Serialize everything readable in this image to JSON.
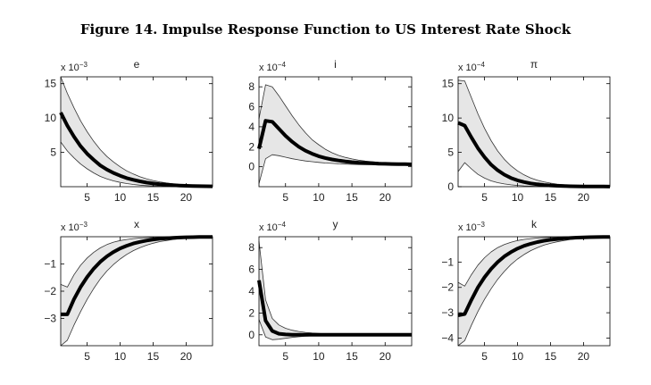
{
  "title": "Figure 14. Impulse Response Function to US Interest Rate Shock",
  "chart_data": [
    {
      "type": "area",
      "title": "e",
      "exponent": "-3",
      "xlim": [
        1,
        24
      ],
      "ylim": [
        0,
        16
      ],
      "xticks": [
        "5",
        "10",
        "15",
        "20"
      ],
      "yticks": [
        "5",
        "10",
        "15"
      ],
      "x": [
        1,
        2,
        3,
        4,
        5,
        6,
        7,
        8,
        9,
        10,
        11,
        12,
        13,
        14,
        15,
        16,
        17,
        18,
        19,
        20,
        21,
        22,
        23,
        24
      ],
      "series": [
        {
          "role": "response",
          "values": [
            10.8,
            8.9,
            7.3,
            5.9,
            4.8,
            3.9,
            3.1,
            2.5,
            2.0,
            1.6,
            1.25,
            1.0,
            0.78,
            0.6,
            0.47,
            0.37,
            0.29,
            0.22,
            0.17,
            0.13,
            0.1,
            0.08,
            0.06,
            0.05
          ]
        },
        {
          "role": "upper",
          "values": [
            16.0,
            13.6,
            11.5,
            9.6,
            8.0,
            6.6,
            5.4,
            4.4,
            3.6,
            2.9,
            2.3,
            1.85,
            1.45,
            1.15,
            0.9,
            0.7,
            0.55,
            0.42,
            0.33,
            0.25,
            0.2,
            0.15,
            0.12,
            0.09
          ]
        },
        {
          "role": "lower",
          "values": [
            6.5,
            5.2,
            4.2,
            3.3,
            2.6,
            2.0,
            1.5,
            1.15,
            0.85,
            0.62,
            0.45,
            0.32,
            0.22,
            0.15,
            0.1,
            0.07,
            0.05,
            0.03,
            0.02,
            0.01,
            0.0,
            0.0,
            0.0,
            0.0
          ]
        }
      ]
    },
    {
      "type": "area",
      "title": "i",
      "exponent": "-4",
      "xlim": [
        1,
        24
      ],
      "ylim": [
        -2,
        9
      ],
      "xticks": [
        "5",
        "10",
        "15",
        "20"
      ],
      "yticks": [
        "0",
        "2",
        "4",
        "6",
        "8"
      ],
      "x": [
        1,
        2,
        3,
        4,
        5,
        6,
        7,
        8,
        9,
        10,
        11,
        12,
        13,
        14,
        15,
        16,
        17,
        18,
        19,
        20,
        21,
        22,
        23,
        24
      ],
      "series": [
        {
          "role": "response",
          "values": [
            1.8,
            4.6,
            4.5,
            3.8,
            3.1,
            2.5,
            2.0,
            1.6,
            1.3,
            1.05,
            0.87,
            0.73,
            0.62,
            0.53,
            0.46,
            0.41,
            0.37,
            0.34,
            0.31,
            0.29,
            0.27,
            0.26,
            0.25,
            0.24
          ]
        },
        {
          "role": "upper",
          "values": [
            4.8,
            8.2,
            8.0,
            7.1,
            6.1,
            5.1,
            4.2,
            3.4,
            2.7,
            2.2,
            1.75,
            1.4,
            1.13,
            0.93,
            0.78,
            0.66,
            0.57,
            0.5,
            0.44,
            0.4,
            0.36,
            0.33,
            0.3,
            0.28
          ]
        },
        {
          "role": "lower",
          "values": [
            -1.7,
            0.8,
            1.2,
            1.1,
            0.95,
            0.8,
            0.68,
            0.58,
            0.5,
            0.43,
            0.37,
            0.33,
            0.29,
            0.26,
            0.24,
            0.22,
            0.21,
            0.2,
            0.19,
            0.18,
            0.18,
            0.17,
            0.17,
            0.17
          ]
        }
      ]
    },
    {
      "type": "area",
      "title": "π",
      "exponent": "-4",
      "xlim": [
        1,
        24
      ],
      "ylim": [
        0,
        16
      ],
      "xticks": [
        "5",
        "10",
        "15",
        "20"
      ],
      "yticks": [
        "0",
        "5",
        "10",
        "15"
      ],
      "x": [
        1,
        2,
        3,
        4,
        5,
        6,
        7,
        8,
        9,
        10,
        11,
        12,
        13,
        14,
        15,
        16,
        17,
        18,
        19,
        20,
        21,
        22,
        23,
        24
      ],
      "series": [
        {
          "role": "response",
          "values": [
            9.3,
            8.9,
            7.2,
            5.6,
            4.3,
            3.2,
            2.4,
            1.75,
            1.28,
            0.93,
            0.67,
            0.48,
            0.35,
            0.25,
            0.18,
            0.13,
            0.09,
            0.07,
            0.05,
            0.04,
            0.03,
            0.02,
            0.02,
            0.01
          ]
        },
        {
          "role": "upper",
          "values": [
            15.5,
            15.4,
            13.0,
            10.6,
            8.5,
            6.7,
            5.2,
            4.0,
            3.05,
            2.3,
            1.72,
            1.28,
            0.95,
            0.7,
            0.52,
            0.38,
            0.28,
            0.2,
            0.15,
            0.11,
            0.08,
            0.06,
            0.04,
            0.03
          ]
        },
        {
          "role": "lower",
          "values": [
            2.2,
            3.5,
            2.6,
            1.8,
            1.25,
            0.85,
            0.58,
            0.4,
            0.27,
            0.18,
            0.12,
            0.08,
            0.05,
            0.03,
            0.02,
            0.01,
            0.0,
            0.0,
            0.0,
            0.0,
            0.0,
            0.0,
            0.0,
            0.0
          ]
        }
      ]
    },
    {
      "type": "area",
      "title": "x",
      "exponent": "-3",
      "xlim": [
        1,
        24
      ],
      "ylim": [
        -4,
        0
      ],
      "xticks": [
        "5",
        "10",
        "15",
        "20"
      ],
      "yticks": [
        "-3",
        "-2",
        "-1"
      ],
      "x": [
        1,
        2,
        3,
        4,
        5,
        6,
        7,
        8,
        9,
        10,
        11,
        12,
        13,
        14,
        15,
        16,
        17,
        18,
        19,
        20,
        21,
        22,
        23,
        24
      ],
      "series": [
        {
          "role": "response",
          "values": [
            -2.85,
            -2.85,
            -2.3,
            -1.85,
            -1.48,
            -1.17,
            -0.92,
            -0.72,
            -0.56,
            -0.43,
            -0.33,
            -0.25,
            -0.19,
            -0.14,
            -0.1,
            -0.075,
            -0.055,
            -0.04,
            -0.03,
            -0.02,
            -0.015,
            -0.01,
            -0.007,
            -0.005
          ]
        },
        {
          "role": "upper",
          "values": [
            -1.75,
            -1.85,
            -1.4,
            -1.05,
            -0.78,
            -0.57,
            -0.41,
            -0.29,
            -0.2,
            -0.14,
            -0.1,
            -0.07,
            -0.05,
            -0.035,
            -0.025,
            -0.018,
            -0.012,
            -0.008,
            -0.006,
            -0.004,
            -0.003,
            -0.002,
            -0.001,
            -0.001
          ]
        },
        {
          "role": "lower",
          "values": [
            -4.0,
            -3.8,
            -3.25,
            -2.75,
            -2.3,
            -1.9,
            -1.55,
            -1.26,
            -1.02,
            -0.82,
            -0.65,
            -0.51,
            -0.4,
            -0.31,
            -0.24,
            -0.18,
            -0.14,
            -0.1,
            -0.08,
            -0.06,
            -0.04,
            -0.03,
            -0.02,
            -0.015
          ]
        }
      ]
    },
    {
      "type": "area",
      "title": "y",
      "exponent": "-4",
      "xlim": [
        1,
        24
      ],
      "ylim": [
        -1,
        9
      ],
      "xticks": [
        "5",
        "10",
        "15",
        "20"
      ],
      "yticks": [
        "0",
        "2",
        "4",
        "6",
        "8"
      ],
      "x": [
        1,
        2,
        3,
        4,
        5,
        6,
        7,
        8,
        9,
        10,
        11,
        12,
        13,
        14,
        15,
        16,
        17,
        18,
        19,
        20,
        21,
        22,
        23,
        24
      ],
      "series": [
        {
          "role": "response",
          "values": [
            5.0,
            1.3,
            0.35,
            0.1,
            0.03,
            0.01,
            0.0,
            0.0,
            0.0,
            0.0,
            0.0,
            0.0,
            0.0,
            0.0,
            0.0,
            0.0,
            0.0,
            0.0,
            0.0,
            0.0,
            0.0,
            0.0,
            0.0,
            0.0
          ]
        },
        {
          "role": "upper",
          "values": [
            8.6,
            3.2,
            1.5,
            0.9,
            0.6,
            0.42,
            0.3,
            0.22,
            0.16,
            0.12,
            0.09,
            0.07,
            0.05,
            0.04,
            0.03,
            0.02,
            0.02,
            0.01,
            0.01,
            0.01,
            0.0,
            0.0,
            0.0,
            0.0
          ]
        },
        {
          "role": "lower",
          "values": [
            1.4,
            -0.2,
            -0.45,
            -0.4,
            -0.32,
            -0.24,
            -0.18,
            -0.13,
            -0.1,
            -0.07,
            -0.05,
            -0.04,
            -0.03,
            -0.02,
            -0.015,
            -0.01,
            -0.01,
            -0.005,
            0.0,
            0.0,
            0.0,
            0.0,
            0.0,
            0.0
          ]
        }
      ]
    },
    {
      "type": "area",
      "title": "k",
      "exponent": "-3",
      "xlim": [
        1,
        24
      ],
      "ylim": [
        -4.3,
        0
      ],
      "xticks": [
        "5",
        "10",
        "15",
        "20"
      ],
      "yticks": [
        "-4",
        "-3",
        "-2",
        "-1"
      ],
      "x": [
        1,
        2,
        3,
        4,
        5,
        6,
        7,
        8,
        9,
        10,
        11,
        12,
        13,
        14,
        15,
        16,
        17,
        18,
        19,
        20,
        21,
        22,
        23,
        24
      ],
      "series": [
        {
          "role": "response",
          "values": [
            -3.1,
            -3.05,
            -2.5,
            -2.0,
            -1.6,
            -1.27,
            -1.0,
            -0.78,
            -0.61,
            -0.47,
            -0.36,
            -0.28,
            -0.21,
            -0.16,
            -0.12,
            -0.09,
            -0.065,
            -0.048,
            -0.035,
            -0.025,
            -0.018,
            -0.013,
            -0.009,
            -0.006
          ]
        },
        {
          "role": "upper",
          "values": [
            -1.8,
            -1.95,
            -1.5,
            -1.12,
            -0.83,
            -0.6,
            -0.43,
            -0.31,
            -0.22,
            -0.15,
            -0.105,
            -0.073,
            -0.05,
            -0.035,
            -0.024,
            -0.017,
            -0.012,
            -0.008,
            -0.006,
            -0.004,
            -0.003,
            -0.002,
            -0.001,
            -0.001
          ]
        },
        {
          "role": "lower",
          "values": [
            -4.3,
            -4.1,
            -3.5,
            -2.95,
            -2.47,
            -2.05,
            -1.68,
            -1.37,
            -1.1,
            -0.88,
            -0.7,
            -0.55,
            -0.43,
            -0.33,
            -0.26,
            -0.2,
            -0.15,
            -0.11,
            -0.085,
            -0.065,
            -0.048,
            -0.036,
            -0.027,
            -0.02
          ]
        }
      ]
    }
  ]
}
